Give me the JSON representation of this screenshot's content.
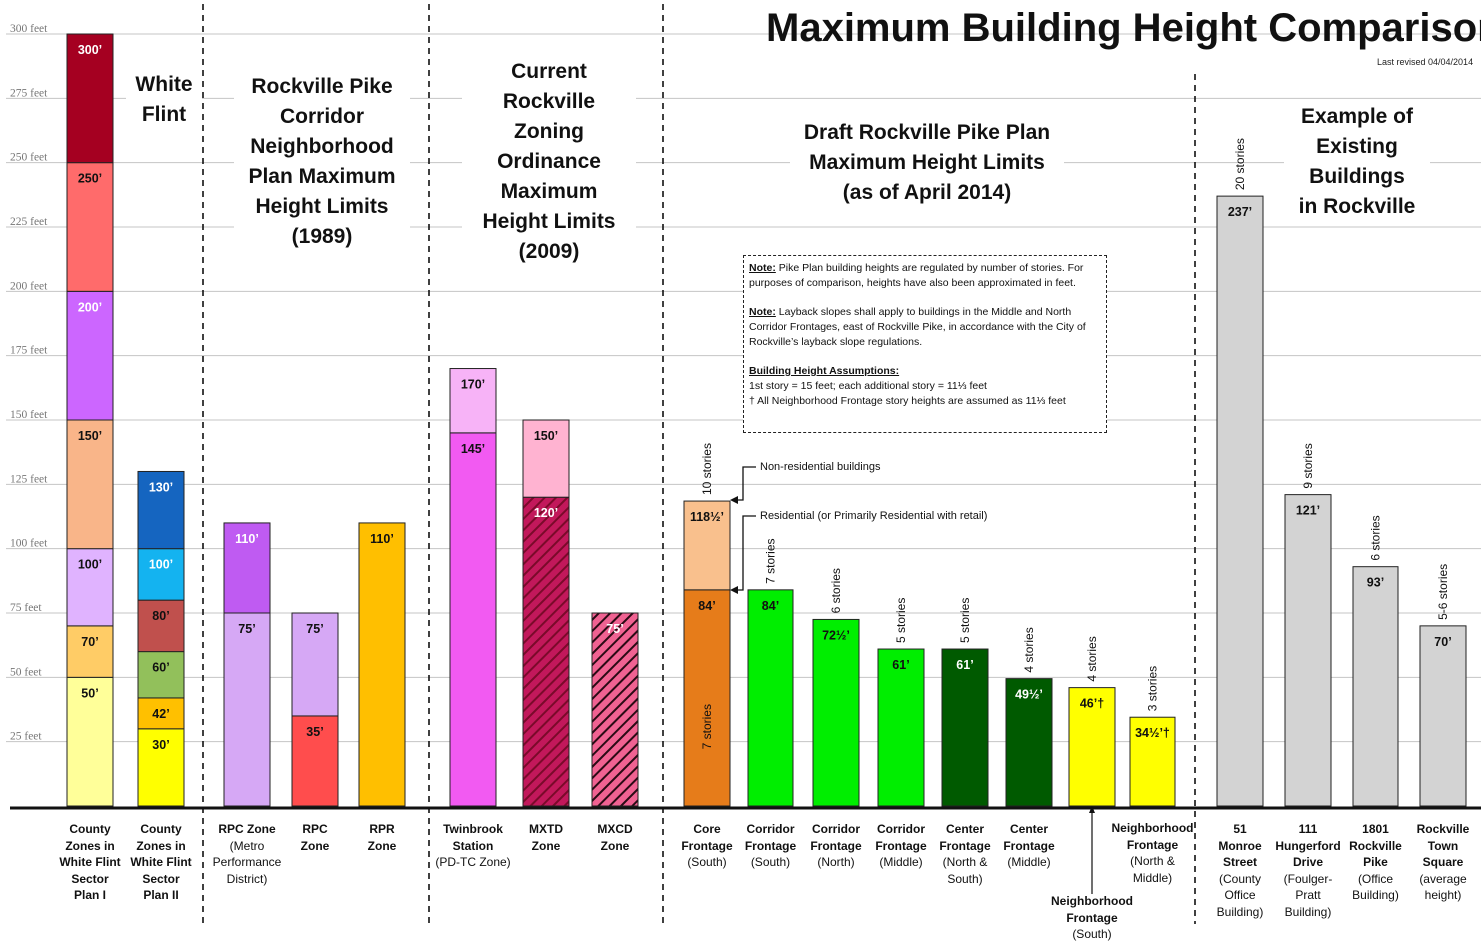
{
  "title": "Maximum Building Height Comparison",
  "revised": "Last revised 04/04/2014",
  "sections": [
    {
      "text": "White\nFlint"
    },
    {
      "text": "Rockville Pike\nCorridor\nNeighborhood\nPlan Maximum\nHeight Limits\n(1989)"
    },
    {
      "text": "Current\nRockville\nZoning\nOrdinance\nMaximum\nHeight Limits\n(2009)"
    },
    {
      "text": "Draft Rockville Pike Plan\nMaximum Height Limits\n(as of April 2014)"
    },
    {
      "text": "Example of\nExisting\nBuildings\nin Rockville"
    }
  ],
  "note": {
    "p1_head": "Note:",
    "p1": " Pike Plan building heights are regulated by number of stories. For purposes of comparison, heights have also been approximated in feet.",
    "p2_head": "Note:",
    "p2": " Layback slopes shall apply to buildings in the Middle and North Corridor Frontages, east of Rockville Pike, in accordance with the City of Rockville’s layback slope regulations.",
    "p3_head": "Building Height Assumptions:",
    "p3a": "1st story = 15 feet; each additional story = 11⅓ feet",
    "p3b": "† All Neighborhood Frontage story heights are assumed as 11⅓ feet"
  },
  "annotations": {
    "nonres": "Non-residential buildings",
    "res": "Residential (or Primarily Residential with retail)"
  },
  "chart_data": {
    "type": "bar",
    "ylabel_unit": "feet",
    "ylim": [
      0,
      300
    ],
    "yticks": [
      25,
      50,
      75,
      100,
      125,
      150,
      175,
      200,
      225,
      250,
      275,
      300
    ],
    "ytick_labels": [
      "25 feet",
      "50 feet",
      "75 feet",
      "100 feet",
      "125 feet",
      "150 feet",
      "175 feet",
      "200 feet",
      "225 feet",
      "250 feet",
      "275 feet",
      "300 feet"
    ],
    "bars": [
      {
        "label": "County Zones in White Flint Sector Plan I",
        "segments": [
          {
            "to": 50,
            "color": "#ffff99",
            "label": "50’"
          },
          {
            "to": 70,
            "color": "#ffcc66",
            "label": "70’"
          },
          {
            "to": 100,
            "color": "#e0b3ff",
            "label": "100’"
          },
          {
            "to": 150,
            "color": "#f9b589",
            "label": "150’"
          },
          {
            "to": 200,
            "color": "#cc66ff",
            "label": "200’",
            "lc": "#fff"
          },
          {
            "to": 250,
            "color": "#ff6b6b",
            "label": "250’"
          },
          {
            "to": 300,
            "color": "#a50021",
            "label": "300’",
            "lc": "#fff"
          }
        ]
      },
      {
        "label": "County Zones in White Flint Sector Plan II",
        "segments": [
          {
            "to": 30,
            "color": "#ffff00",
            "label": "30’"
          },
          {
            "to": 42,
            "color": "#ffc000",
            "label": "42’"
          },
          {
            "to": 60,
            "color": "#92c05b",
            "label": "60’"
          },
          {
            "to": 80,
            "color": "#c0504d",
            "label": "80’"
          },
          {
            "to": 100,
            "color": "#14b3f0",
            "label": "100’",
            "lc": "#fff"
          },
          {
            "to": 130,
            "color": "#1565c0",
            "label": "130’",
            "lc": "#fff"
          }
        ]
      },
      {
        "label": "RPC Zone (Metro Performance District)",
        "segments": [
          {
            "to": 75,
            "color": "#d6a8f5",
            "label": "75’"
          },
          {
            "to": 110,
            "color": "#bf5bf2",
            "label": "110’",
            "lc": "#fff"
          }
        ]
      },
      {
        "label": "RPC Zone",
        "segments": [
          {
            "to": 35,
            "color": "#ff4d4d",
            "label": "35’"
          },
          {
            "to": 75,
            "color": "#d6a8f5",
            "label": "75’"
          }
        ]
      },
      {
        "label": "RPR Zone",
        "segments": [
          {
            "to": 110,
            "color": "#ffbf00",
            "label": "110’"
          }
        ]
      },
      {
        "label": "Twinbrook Station (PD-TC Zone)",
        "segments": [
          {
            "to": 145,
            "color": "#f25af2",
            "label": "145’"
          },
          {
            "to": 170,
            "color": "#f7b3f7",
            "label": "170’"
          }
        ]
      },
      {
        "label": "MXTD Zone",
        "segments": [
          {
            "to": 120,
            "color": "#c2185b",
            "label": "120’",
            "lc": "#fff",
            "hatch": "hatchRed"
          },
          {
            "to": 150,
            "color": "#ffb3d1",
            "label": "150’"
          }
        ]
      },
      {
        "label": "MXCD Zone",
        "segments": [
          {
            "to": 75,
            "color": "#f06292",
            "label": "75’",
            "lc": "#fff",
            "hatch": "hatchPink"
          }
        ]
      },
      {
        "label": "Core Frontage (South)",
        "stories": "10 stories",
        "segments": [
          {
            "to": 84,
            "color": "#e67c1a",
            "label": "84’"
          },
          {
            "to": 118.5,
            "color": "#f9c08d",
            "label": "118½’"
          }
        ]
      },
      {
        "label": "Corridor Frontage (South)",
        "stories": "7 stories",
        "segments": [
          {
            "to": 84,
            "color": "#00ee00",
            "label": "84’"
          }
        ]
      },
      {
        "label": "Corridor Frontage (North)",
        "stories": "6 stories",
        "segments": [
          {
            "to": 72.5,
            "color": "#00ee00",
            "label": "72½’"
          }
        ]
      },
      {
        "label": "Corridor Frontage (Middle)",
        "stories": "5 stories",
        "segments": [
          {
            "to": 61,
            "color": "#00ee00",
            "label": "61’"
          }
        ]
      },
      {
        "label": "Center Frontage (North & South)",
        "stories": "5 stories",
        "segments": [
          {
            "to": 61,
            "color": "#005a00",
            "label": "61’",
            "lc": "#fff"
          }
        ]
      },
      {
        "label": "Center Frontage (Middle)",
        "stories": "4 stories",
        "segments": [
          {
            "to": 49.5,
            "color": "#005a00",
            "label": "49½’",
            "lc": "#fff"
          }
        ]
      },
      {
        "label": "Neighborhood Frontage (South)",
        "stories": "4 stories",
        "segments": [
          {
            "to": 46,
            "color": "#ffff00",
            "label": "46’†"
          }
        ]
      },
      {
        "label": "Neighborhood Frontage (North & Middle)",
        "stories": "3 stories",
        "segments": [
          {
            "to": 34.5,
            "color": "#ffff00",
            "label": "34½’†"
          }
        ]
      },
      {
        "label": "51 Monroe Street (County Office Building)",
        "stories": "20 stories",
        "segments": [
          {
            "to": 237,
            "color": "#d3d3d3",
            "label": "237’"
          }
        ]
      },
      {
        "label": "111 Hungerford Drive (Foulger-Pratt Building)",
        "stories": "9 stories",
        "segments": [
          {
            "to": 121,
            "color": "#d3d3d3",
            "label": "121’"
          }
        ]
      },
      {
        "label": "1801 Rockville Pike (Office Building)",
        "stories": "6 stories",
        "segments": [
          {
            "to": 93,
            "color": "#d3d3d3",
            "label": "93’"
          }
        ]
      },
      {
        "label": "Rockville Town Square (average height)",
        "stories": "5-6 stories",
        "segments": [
          {
            "to": 70,
            "color": "#d3d3d3",
            "label": "70’"
          }
        ]
      }
    ],
    "inner_story_label": {
      "bar": 8,
      "text": "7 stories"
    }
  },
  "xlabels": [
    {
      "bold": "County\nZones in\nWhite Flint\nSector\nPlan I",
      "rest": ""
    },
    {
      "bold": "County\nZones in\nWhite Flint\nSector\nPlan II",
      "rest": ""
    },
    {
      "bold": "RPC Zone",
      "rest": "(Metro\nPerformance\nDistrict)"
    },
    {
      "bold": "RPC\nZone",
      "rest": ""
    },
    {
      "bold": "RPR\nZone",
      "rest": ""
    },
    {
      "bold": "Twinbrook\nStation",
      "rest": "(PD-TC Zone)"
    },
    {
      "bold": "MXTD\nZone",
      "rest": ""
    },
    {
      "bold": "MXCD\nZone",
      "rest": ""
    },
    {
      "bold": "Core\nFrontage",
      "rest": "(South)"
    },
    {
      "bold": "Corridor\nFrontage",
      "rest": "(South)"
    },
    {
      "bold": "Corridor\nFrontage",
      "rest": "(North)"
    },
    {
      "bold": "Corridor\nFrontage",
      "rest": "(Middle)"
    },
    {
      "bold": "Center\nFrontage",
      "rest": "(North &\nSouth)"
    },
    {
      "bold": "Center\nFrontage",
      "rest": "(Middle)"
    },
    {
      "bold": "Neighborhood\nFrontage",
      "rest": "(South)"
    },
    {
      "bold": "Neighborhood\nFrontage",
      "rest": "(North &\nMiddle)"
    },
    {
      "bold": "51\nMonroe\nStreet",
      "rest": "(County\nOffice\nBuilding)"
    },
    {
      "bold": "111\nHungerford\nDrive",
      "rest": "(Foulger-\nPratt\nBuilding)"
    },
    {
      "bold": "1801\nRockville\nPike",
      "rest": "(Office\nBuilding)"
    },
    {
      "bold": "Rockville\nTown\nSquare",
      "rest": "(average\nheight)"
    }
  ]
}
